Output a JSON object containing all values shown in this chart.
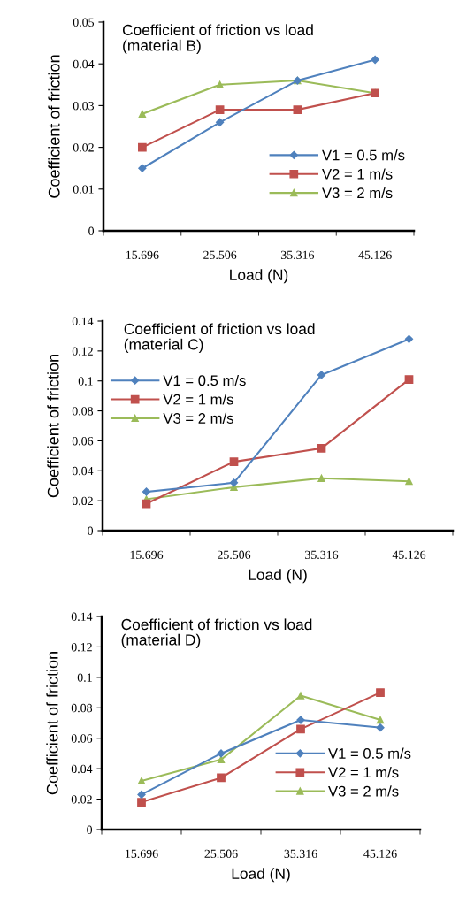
{
  "chart_data": [
    {
      "type": "line",
      "title": "Coefficient of friction vs load\n(material B)",
      "xlabel": "Load (N)",
      "ylabel": "Coefficient of friction",
      "categories": [
        "15.696",
        "25.506",
        "35.316",
        "45.126"
      ],
      "series": [
        {
          "name": "V1 = 0.5 m/s",
          "color": "#4f81bd",
          "marker": "diamond",
          "values": [
            0.015,
            0.026,
            0.036,
            0.041
          ]
        },
        {
          "name": "V2 = 1 m/s",
          "color": "#c0504d",
          "marker": "square",
          "values": [
            0.02,
            0.029,
            0.029,
            0.033
          ]
        },
        {
          "name": "V3 = 2 m/s",
          "color": "#9bbb59",
          "marker": "triangle",
          "values": [
            0.028,
            0.035,
            0.036,
            0.033
          ]
        }
      ],
      "ylim": [
        0,
        0.05
      ],
      "yticks": [
        0,
        0.01,
        0.02,
        0.03,
        0.04,
        0.05
      ],
      "legend": "bottom right",
      "grid": false
    },
    {
      "type": "line",
      "title": "Coefficient of friction vs load\n(material C)",
      "xlabel": "Load (N)",
      "ylabel": "Coefficient of friction",
      "categories": [
        "15.696",
        "25.506",
        "35.316",
        "45.126"
      ],
      "series": [
        {
          "name": "V1 = 0.5 m/s",
          "color": "#4f81bd",
          "marker": "diamond",
          "values": [
            0.026,
            0.032,
            0.104,
            0.128
          ]
        },
        {
          "name": "V2 = 1 m/s",
          "color": "#c0504d",
          "marker": "square",
          "values": [
            0.018,
            0.046,
            0.055,
            0.101
          ]
        },
        {
          "name": "V3 = 2 m/s",
          "color": "#9bbb59",
          "marker": "triangle",
          "values": [
            0.021,
            0.029,
            0.035,
            0.033
          ]
        }
      ],
      "ylim": [
        0,
        0.14
      ],
      "yticks": [
        0,
        0.02,
        0.04,
        0.06,
        0.08,
        0.1,
        0.12,
        0.14
      ],
      "legend": "left",
      "grid": false
    },
    {
      "type": "line",
      "title": "Coefficient of friction vs load\n(material D)",
      "xlabel": "Load (N)",
      "ylabel": "Coefficient of friction",
      "categories": [
        "15.696",
        "25.506",
        "35.316",
        "45.126"
      ],
      "series": [
        {
          "name": "V1 = 0.5 m/s",
          "color": "#4f81bd",
          "marker": "diamond",
          "values": [
            0.023,
            0.05,
            0.072,
            0.067
          ]
        },
        {
          "name": "V2 = 1 m/s",
          "color": "#c0504d",
          "marker": "square",
          "values": [
            0.018,
            0.034,
            0.066,
            0.09
          ]
        },
        {
          "name": "V3 = 2 m/s",
          "color": "#9bbb59",
          "marker": "triangle",
          "values": [
            0.032,
            0.046,
            0.088,
            0.072
          ]
        }
      ],
      "ylim": [
        0,
        0.14
      ],
      "yticks": [
        0,
        0.02,
        0.04,
        0.06,
        0.08,
        0.1,
        0.12,
        0.14
      ],
      "legend": "bottom right",
      "grid": false
    }
  ]
}
